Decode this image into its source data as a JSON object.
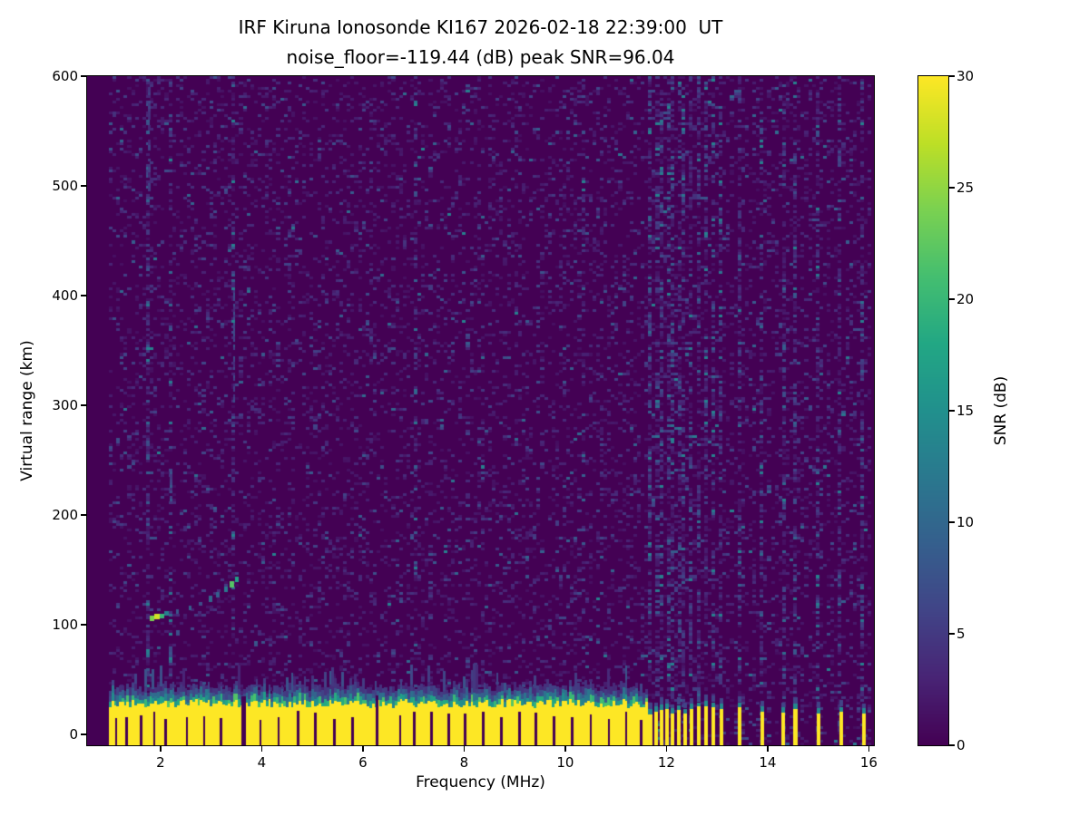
{
  "chart_data": {
    "type": "heatmap",
    "title_lines": [
      "IRF Kiruna Ionosonde KI167 2026-02-18 22:39:00  UT",
      "noise_floor=-119.44 (dB) peak SNR=96.04"
    ],
    "station": "IRF Kiruna Ionosonde KI167",
    "timestamp_ut": "2026-02-18 22:39:00",
    "noise_floor_db": -119.44,
    "peak_snr_db": 96.04,
    "xlabel": "Frequency (MHz)",
    "ylabel": "Virtual range (km)",
    "x_ticks": [
      2,
      4,
      6,
      8,
      10,
      12,
      14,
      16
    ],
    "y_ticks": [
      0,
      100,
      200,
      300,
      400,
      500,
      600
    ],
    "x_range": [
      0.55,
      16.1
    ],
    "y_range": [
      -10,
      600
    ],
    "colormap": "viridis",
    "background_hex": "#440154",
    "saturated_hex": "#fde725",
    "colorbar": {
      "label": "SNR (dB)",
      "ticks": [
        0,
        5,
        10,
        15,
        20,
        25,
        30
      ],
      "range": [
        0,
        30
      ]
    },
    "noise": {
      "f_min": 0.98,
      "f_max": 16.05,
      "km_min": -10,
      "cols": 205,
      "rows": 244,
      "density": 0.3,
      "mean": 2.0,
      "max": 13
    },
    "rfi_stripes": [
      {
        "f": 1.78,
        "w": 0.06,
        "boost": 2.8
      },
      {
        "f": 2.2,
        "w": 0.05,
        "boost": 2.0
      },
      {
        "f": 3.45,
        "w": 0.05,
        "boost": 2.2
      },
      {
        "f": 7.05,
        "w": 0.04,
        "boost": 1.7
      },
      {
        "f": 9.3,
        "w": 0.04,
        "boost": 1.6
      },
      {
        "f": 10.35,
        "w": 0.04,
        "boost": 1.6
      }
    ],
    "artifacts": [
      {
        "f": 3.43,
        "w": 0.05,
        "km0": 300,
        "km1": 405,
        "v": 5.5
      },
      {
        "f": 2.18,
        "w": 0.06,
        "km0": 212,
        "km1": 238,
        "v": 6
      },
      {
        "f": 1.76,
        "w": 0.05,
        "km0": 495,
        "km1": 590,
        "v": 4.5
      }
    ],
    "ground_band": {
      "f_min": 0.98,
      "f_max": 11.62,
      "top_km": 27,
      "jitter": 8,
      "spike_prob": 0.16,
      "spike_h": 18,
      "fringe": [
        {
          "h": 5,
          "v": 17
        },
        {
          "h": 5,
          "v": 9
        },
        {
          "h": 5,
          "v": 4.5
        }
      ]
    },
    "notches": [
      {
        "f": 1.12
      },
      {
        "f": 1.33
      },
      {
        "f": 1.62
      },
      {
        "f": 1.88
      },
      {
        "f": 2.1
      },
      {
        "f": 2.52
      },
      {
        "f": 2.86
      },
      {
        "f": 3.2
      },
      {
        "f": 3.64,
        "w": 0.09,
        "deep": true
      },
      {
        "f": 3.98
      },
      {
        "f": 4.33
      },
      {
        "f": 4.72
      },
      {
        "f": 5.06
      },
      {
        "f": 5.44
      },
      {
        "f": 5.8
      },
      {
        "f": 6.28,
        "w": 0.07,
        "deep": true
      },
      {
        "f": 6.74
      },
      {
        "f": 7.02
      },
      {
        "f": 7.36
      },
      {
        "f": 7.7
      },
      {
        "f": 8.02
      },
      {
        "f": 8.38
      },
      {
        "f": 8.74
      },
      {
        "f": 9.1
      },
      {
        "f": 9.42
      },
      {
        "f": 9.78
      },
      {
        "f": 10.14
      },
      {
        "f": 10.5
      },
      {
        "f": 10.86
      },
      {
        "f": 11.2
      },
      {
        "f": 11.5
      }
    ],
    "sparse_bars": [
      {
        "f": 11.68
      },
      {
        "f": 11.79
      },
      {
        "f": 11.9
      },
      {
        "f": 12.01
      },
      {
        "f": 12.12
      },
      {
        "f": 12.24
      },
      {
        "f": 12.37
      },
      {
        "f": 12.5
      },
      {
        "f": 12.64
      },
      {
        "f": 12.78
      },
      {
        "f": 12.93
      },
      {
        "f": 13.08
      },
      {
        "f": 13.45
      },
      {
        "f": 13.9
      },
      {
        "f": 14.3
      },
      {
        "f": 14.55
      },
      {
        "f": 15.0
      },
      {
        "f": 15.45
      },
      {
        "f": 15.9
      }
    ],
    "echo_trace": [
      {
        "f": 1.78,
        "w": 0.1,
        "km": 103,
        "h": 5,
        "v": 24
      },
      {
        "f": 1.88,
        "w": 0.1,
        "km": 105,
        "h": 5,
        "v": 28
      },
      {
        "f": 1.98,
        "w": 0.1,
        "km": 106,
        "h": 4,
        "v": 20
      },
      {
        "f": 2.08,
        "w": 0.08,
        "km": 108,
        "h": 4,
        "v": 13
      },
      {
        "f": 2.3,
        "w": 0.07,
        "km": 110,
        "h": 4,
        "v": 8
      },
      {
        "f": 2.55,
        "w": 0.07,
        "km": 113,
        "h": 4,
        "v": 9
      },
      {
        "f": 2.75,
        "w": 0.07,
        "km": 117,
        "h": 4,
        "v": 7
      },
      {
        "f": 2.95,
        "w": 0.07,
        "km": 121,
        "h": 5,
        "v": 10
      },
      {
        "f": 3.1,
        "w": 0.07,
        "km": 125,
        "h": 5,
        "v": 9
      },
      {
        "f": 3.25,
        "w": 0.08,
        "km": 130,
        "h": 5,
        "v": 12
      },
      {
        "f": 3.36,
        "w": 0.1,
        "km": 134,
        "h": 6,
        "v": 22
      },
      {
        "f": 3.47,
        "w": 0.08,
        "km": 139,
        "h": 5,
        "v": 17
      }
    ]
  }
}
